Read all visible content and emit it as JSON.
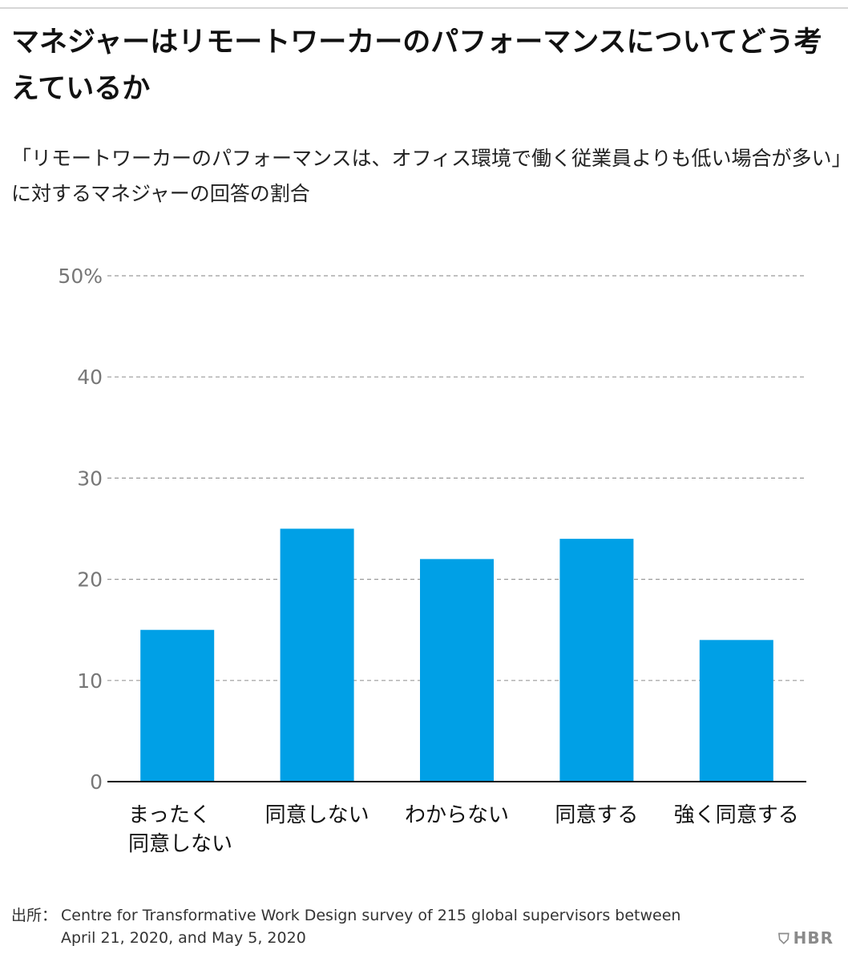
{
  "title": "マネジャーはリモートワーカーのパフォーマンスについてどう考えているか",
  "subtitle": "「リモートワーカーのパフォーマンスは、オフィス環境で働く従業員よりも低い場合が多い」に対するマネジャーの回答の割合",
  "chart_data": {
    "type": "bar",
    "categories": [
      [
        "まったく",
        "同意しない"
      ],
      [
        "同意しない"
      ],
      [
        "わからない"
      ],
      [
        "同意する"
      ],
      [
        "強く同意する"
      ]
    ],
    "values": [
      15,
      25,
      22,
      24,
      14
    ],
    "ylim": [
      0,
      50
    ],
    "yticks": [
      0,
      10,
      20,
      30,
      40,
      50
    ],
    "ytick_labels": [
      "0",
      "10",
      "20",
      "30",
      "40",
      "50%"
    ],
    "grid": true,
    "bar_color": "#00a0e6"
  },
  "source": {
    "label": "出所：",
    "text": "Centre for Transformative Work Design survey of 215 global supervisors between April 21, 2020, and May 5, 2020"
  },
  "logo": {
    "icon": "hbr-shield-icon",
    "text": "HBR"
  }
}
